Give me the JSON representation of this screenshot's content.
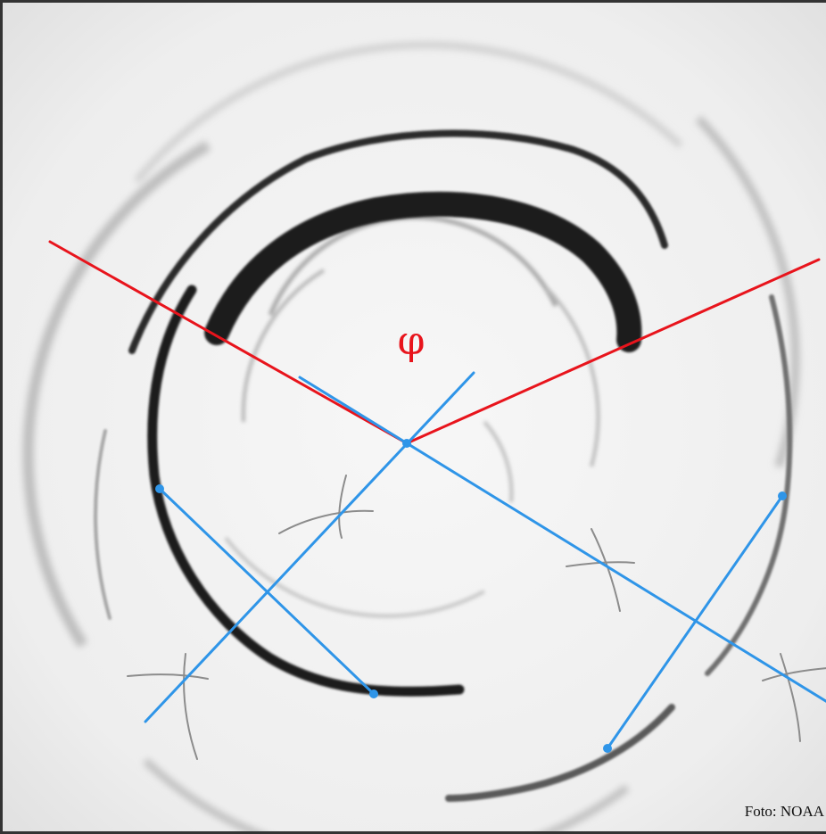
{
  "angle_label": "φ",
  "photo_credit": "Foto: NOAA",
  "colors": {
    "background": "#f1f1f1",
    "ring_dark": "#1a1a1a",
    "ring_faint": "#9a9a9a",
    "pencil": "#8c8c8c",
    "angle_lines": "#e8141c",
    "construction_lines": "#2f95e8",
    "frame_border": "#333333"
  }
}
